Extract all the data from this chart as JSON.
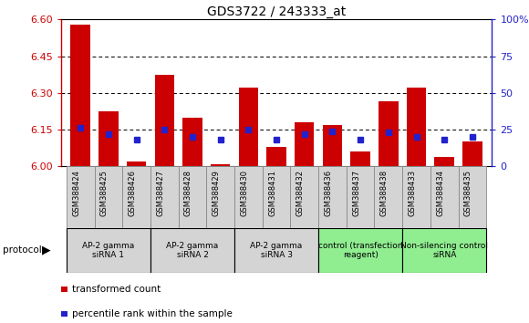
{
  "title": "GDS3722 / 243333_at",
  "samples": [
    "GSM388424",
    "GSM388425",
    "GSM388426",
    "GSM388427",
    "GSM388428",
    "GSM388429",
    "GSM388430",
    "GSM388431",
    "GSM388432",
    "GSM388436",
    "GSM388437",
    "GSM388438",
    "GSM388433",
    "GSM388434",
    "GSM388435"
  ],
  "bar_values": [
    6.58,
    6.225,
    6.02,
    6.375,
    6.2,
    6.01,
    6.32,
    6.08,
    6.18,
    6.17,
    6.06,
    6.265,
    6.32,
    6.04,
    6.1
  ],
  "percentile_values": [
    26,
    22,
    18,
    25,
    20,
    18,
    25,
    18,
    22,
    24,
    18,
    23,
    20,
    18,
    20
  ],
  "ymin": 6.0,
  "ymax": 6.6,
  "y_ticks": [
    6.0,
    6.15,
    6.3,
    6.45,
    6.6
  ],
  "y_right_ticks": [
    0,
    25,
    50,
    75,
    100
  ],
  "y_right_labels": [
    "0",
    "25",
    "50",
    "75",
    "100%"
  ],
  "bar_color": "#cc0000",
  "dot_color": "#2222cc",
  "groups": [
    {
      "label": "AP-2 gamma\nsiRNA 1",
      "indices": [
        0,
        1,
        2
      ],
      "color": "#d4d4d4"
    },
    {
      "label": "AP-2 gamma\nsiRNA 2",
      "indices": [
        3,
        4,
        5
      ],
      "color": "#d4d4d4"
    },
    {
      "label": "AP-2 gamma\nsiRNA 3",
      "indices": [
        6,
        7,
        8
      ],
      "color": "#d4d4d4"
    },
    {
      "label": "control (transfection\nreagent)",
      "indices": [
        9,
        10,
        11
      ],
      "color": "#90ee90"
    },
    {
      "label": "Non-silencing control\nsiRNA",
      "indices": [
        12,
        13,
        14
      ],
      "color": "#90ee90"
    }
  ],
  "protocol_label": "protocol",
  "legend_bar_label": "transformed count",
  "legend_dot_label": "percentile rank within the sample",
  "axis_color_left": "#cc0000",
  "axis_color_right": "#2222cc",
  "title_fontsize": 10,
  "label_fontsize": 6.5,
  "group_fontsize": 6.5,
  "bar_width": 0.7,
  "sample_bg_color": "#d4d4d4",
  "sample_border_color": "#888888"
}
